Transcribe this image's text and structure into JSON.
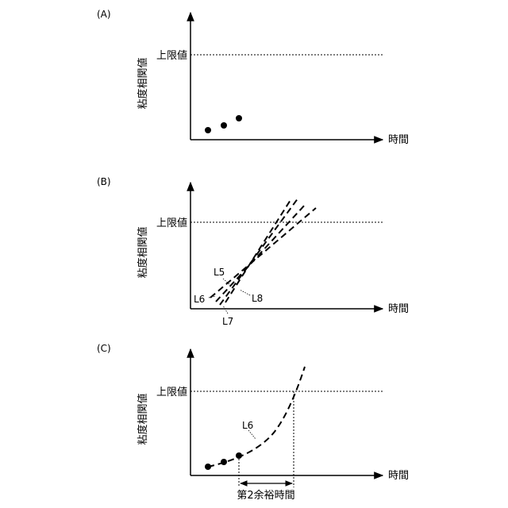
{
  "panels": [
    {
      "label": "(A)",
      "ylabel": "粘度相関値",
      "xlabel": "時間",
      "threshold_label": "上限値"
    },
    {
      "label": "(B)",
      "ylabel": "粘度相関値",
      "xlabel": "時間",
      "threshold_label": "上限値",
      "line_labels": [
        "L5",
        "L6",
        "L7",
        "L8"
      ]
    },
    {
      "label": "(C)",
      "ylabel": "粘度相関値",
      "xlabel": "時間",
      "threshold_label": "上限値",
      "line_labels": [
        "L6"
      ],
      "interval_label": "第2余裕時間"
    }
  ],
  "colors": {
    "ink": "#000000",
    "background": "#ffffff"
  }
}
